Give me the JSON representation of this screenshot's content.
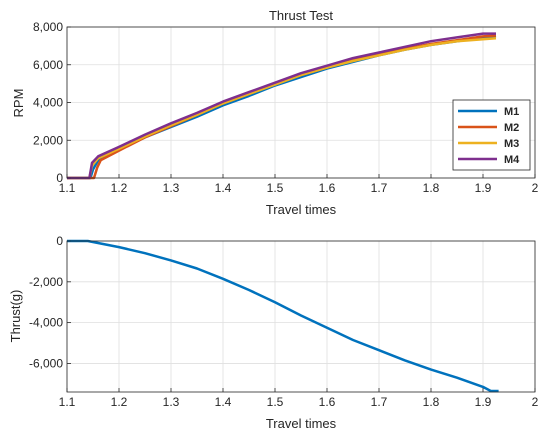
{
  "chart_data": [
    {
      "type": "line",
      "title": "Thrust Test",
      "xlabel": "Travel times",
      "ylabel": "RPM",
      "xlim": [
        1.1,
        2
      ],
      "ylim": [
        0,
        8000
      ],
      "xticks": [
        1.1,
        1.2,
        1.3,
        1.4,
        1.5,
        1.6,
        1.7,
        1.8,
        1.9,
        2
      ],
      "xtick_labels": [
        "1.1",
        "1.2",
        "1.3",
        "1.4",
        "1.5",
        "1.6",
        "1.7",
        "1.8",
        "1.9",
        "2"
      ],
      "yticks": [
        0,
        2000,
        4000,
        6000,
        8000
      ],
      "ytick_labels": [
        "0",
        "2,000",
        "4,000",
        "6,000",
        "8,000"
      ],
      "grid": true,
      "legend": "lower-right",
      "series": [
        {
          "name": "M1",
          "color": "#0072BD",
          "x": [
            1.1,
            1.145,
            1.15,
            1.16,
            1.2,
            1.25,
            1.3,
            1.35,
            1.4,
            1.45,
            1.5,
            1.55,
            1.6,
            1.65,
            1.7,
            1.75,
            1.8,
            1.85,
            1.9,
            1.925
          ],
          "y": [
            0,
            0,
            450,
            950,
            1500,
            2150,
            2700,
            3250,
            3850,
            4350,
            4900,
            5350,
            5800,
            6150,
            6500,
            6800,
            7050,
            7250,
            7450,
            7500
          ]
        },
        {
          "name": "M2",
          "color": "#D95319",
          "x": [
            1.1,
            1.152,
            1.158,
            1.165,
            1.2,
            1.25,
            1.3,
            1.35,
            1.4,
            1.45,
            1.5,
            1.55,
            1.6,
            1.65,
            1.7,
            1.75,
            1.8,
            1.85,
            1.9,
            1.925
          ],
          "y": [
            0,
            0,
            550,
            950,
            1450,
            2150,
            2750,
            3350,
            3950,
            4450,
            5000,
            5450,
            5850,
            6250,
            6550,
            6850,
            7100,
            7300,
            7500,
            7550
          ]
        },
        {
          "name": "M3",
          "color": "#EDB120",
          "x": [
            1.1,
            1.143,
            1.148,
            1.16,
            1.2,
            1.25,
            1.3,
            1.35,
            1.4,
            1.45,
            1.5,
            1.55,
            1.6,
            1.65,
            1.7,
            1.75,
            1.8,
            1.85,
            1.9,
            1.925
          ],
          "y": [
            0,
            0,
            650,
            1050,
            1550,
            2200,
            2800,
            3350,
            3950,
            4450,
            4950,
            5450,
            5850,
            6200,
            6500,
            6800,
            7050,
            7250,
            7350,
            7400
          ]
        },
        {
          "name": "M4",
          "color": "#7E2F8E",
          "x": [
            1.1,
            1.143,
            1.148,
            1.16,
            1.2,
            1.25,
            1.3,
            1.35,
            1.4,
            1.45,
            1.5,
            1.55,
            1.6,
            1.65,
            1.7,
            1.75,
            1.8,
            1.85,
            1.9,
            1.925
          ],
          "y": [
            0,
            0,
            800,
            1150,
            1650,
            2300,
            2900,
            3450,
            4050,
            4550,
            5050,
            5550,
            5950,
            6350,
            6650,
            6950,
            7250,
            7450,
            7650,
            7650
          ]
        }
      ]
    },
    {
      "type": "line",
      "title": "",
      "xlabel": "Travel times",
      "ylabel": "Thrust(g)",
      "xlim": [
        1.1,
        2
      ],
      "ylim": [
        -7400,
        0
      ],
      "xticks": [
        1.1,
        1.2,
        1.3,
        1.4,
        1.5,
        1.6,
        1.7,
        1.8,
        1.9,
        2
      ],
      "xtick_labels": [
        "1.1",
        "1.2",
        "1.3",
        "1.4",
        "1.5",
        "1.6",
        "1.7",
        "1.8",
        "1.9",
        "2"
      ],
      "yticks": [
        -6000,
        -4000,
        -2000,
        0
      ],
      "ytick_labels": [
        "-6,000",
        "-4,000",
        "-2,000",
        "0"
      ],
      "grid": true,
      "series": [
        {
          "color": "#0072BD",
          "x": [
            1.1,
            1.12,
            1.14,
            1.2,
            1.25,
            1.3,
            1.35,
            1.4,
            1.45,
            1.5,
            1.55,
            1.6,
            1.65,
            1.7,
            1.75,
            1.8,
            1.85,
            1.9,
            1.915,
            1.93
          ],
          "y": [
            0,
            0,
            0,
            -300,
            -600,
            -950,
            -1350,
            -1850,
            -2400,
            -3000,
            -3650,
            -4250,
            -4850,
            -5350,
            -5850,
            -6300,
            -6700,
            -7150,
            -7350,
            -7350
          ]
        }
      ]
    }
  ]
}
